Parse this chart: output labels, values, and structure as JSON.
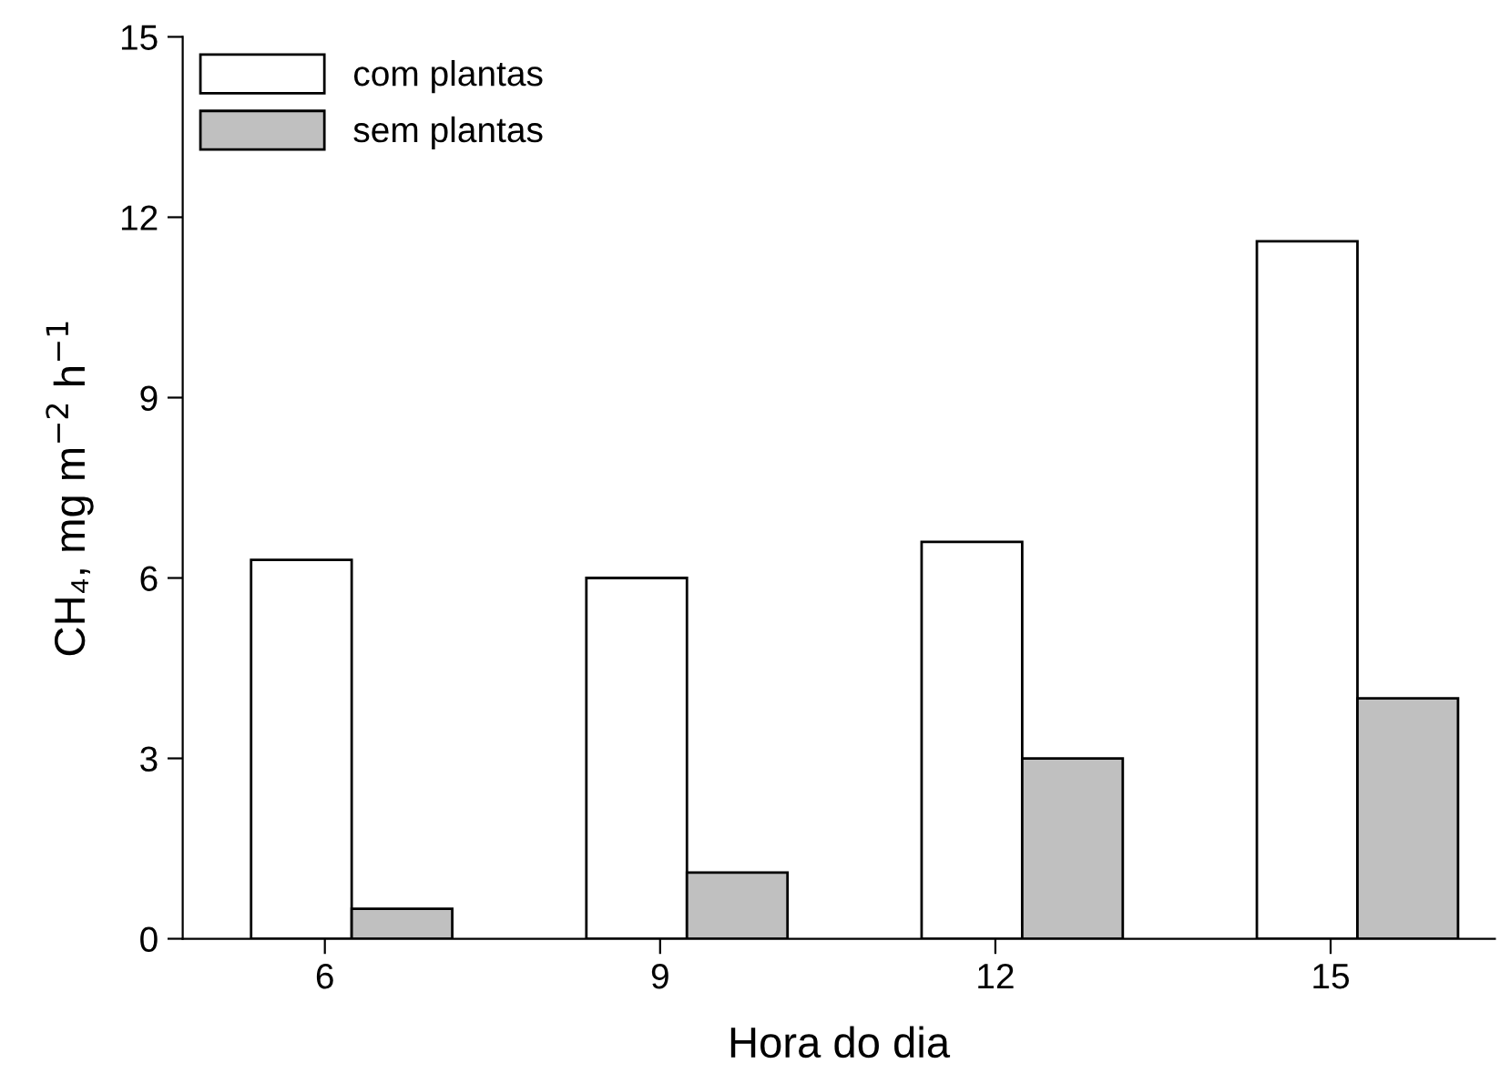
{
  "chart_data": {
    "type": "bar",
    "xlabel": "Hora do dia",
    "ylabel": "CH₄, mg m$^{−2}$ h$^{−1}$",
    "categories": [
      "6",
      "9",
      "12",
      "15"
    ],
    "series": [
      {
        "name": "com plantas",
        "color": "#ffffff",
        "values": [
          6.3,
          6.0,
          6.6,
          11.6
        ]
      },
      {
        "name": "sem plantas",
        "color": "#c0c0c0",
        "values": [
          0.5,
          1.1,
          3.0,
          4.0
        ]
      }
    ],
    "ylim": [
      0,
      15
    ],
    "yticks": [
      0,
      3,
      6,
      9,
      12,
      15
    ],
    "grid": false,
    "legend": "top left"
  }
}
